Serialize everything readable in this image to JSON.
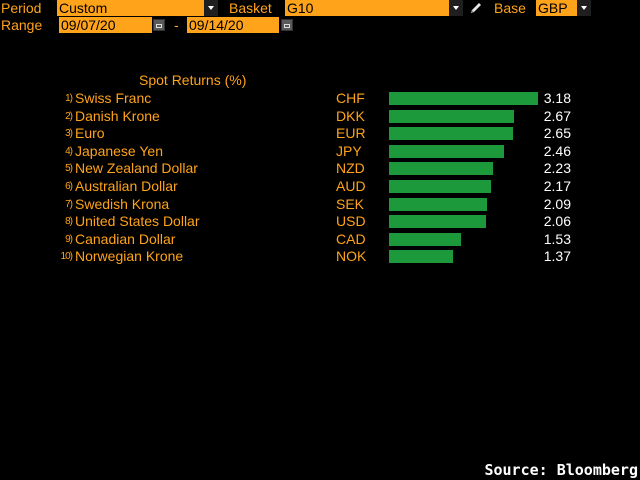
{
  "header": {
    "period_label": "Period",
    "period_value": "Custom",
    "basket_label": "Basket",
    "basket_value": "G10",
    "base_label": "Base",
    "base_value": "GBP",
    "range_label": "Range",
    "range_start": "09/07/20",
    "range_sep": "-",
    "range_end": "09/14/20"
  },
  "table": {
    "title": "Spot Returns (%)",
    "rows": [
      {
        "rank": "1",
        "name": "Swiss Franc",
        "code": "CHF",
        "value": "3.18"
      },
      {
        "rank": "2",
        "name": "Danish Krone",
        "code": "DKK",
        "value": "2.67"
      },
      {
        "rank": "3",
        "name": "Euro",
        "code": "EUR",
        "value": "2.65"
      },
      {
        "rank": "4",
        "name": "Japanese Yen",
        "code": "JPY",
        "value": "2.46"
      },
      {
        "rank": "5",
        "name": "New Zealand Dollar",
        "code": "NZD",
        "value": "2.23"
      },
      {
        "rank": "6",
        "name": "Australian Dollar",
        "code": "AUD",
        "value": "2.17"
      },
      {
        "rank": "7",
        "name": "Swedish Krona",
        "code": "SEK",
        "value": "2.09"
      },
      {
        "rank": "8",
        "name": "United States Dollar",
        "code": "USD",
        "value": "2.06"
      },
      {
        "rank": "9",
        "name": "Canadian Dollar",
        "code": "CAD",
        "value": "1.53"
      },
      {
        "rank": "10",
        "name": "Norwegian Krone",
        "code": "NOK",
        "value": "1.37"
      }
    ]
  },
  "footer": {
    "source": "Source: Bloomberg"
  },
  "colors": {
    "accent": "#ffa31a",
    "bar": "#1c9a3b",
    "background": "#000000"
  },
  "icons": {
    "edit": "pencil-icon",
    "calendar": "calendar-icon",
    "dropdown": "chevron-down-icon"
  }
}
